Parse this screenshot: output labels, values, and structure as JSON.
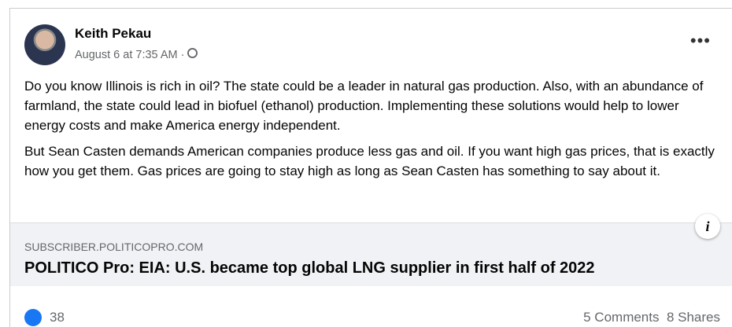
{
  "post": {
    "author": "Keith Pekau",
    "timestamp": "August 6 at 7:35 AM · ",
    "paragraphs": [
      "Do you know Illinois is rich in oil? The state could be a leader in natural gas production. Also, with an abundance of farmland, the state could lead in biofuel (ethanol) production. Implementing these solutions would help to lower energy costs and make America energy independent.",
      "But Sean Casten demands American companies produce less gas and oil. If you want high gas prices, that is exactly how you get them. Gas prices are going to stay high as long as Sean Casten has something to say about it."
    ],
    "link": {
      "domain": "SUBSCRIBER.POLITICOPRO.COM",
      "title": "POLITICO Pro: EIA: U.S. became top global LNG supplier in first half of 2022"
    },
    "reactions": "38",
    "comments": "5 Comments",
    "shares": "8 Shares"
  }
}
